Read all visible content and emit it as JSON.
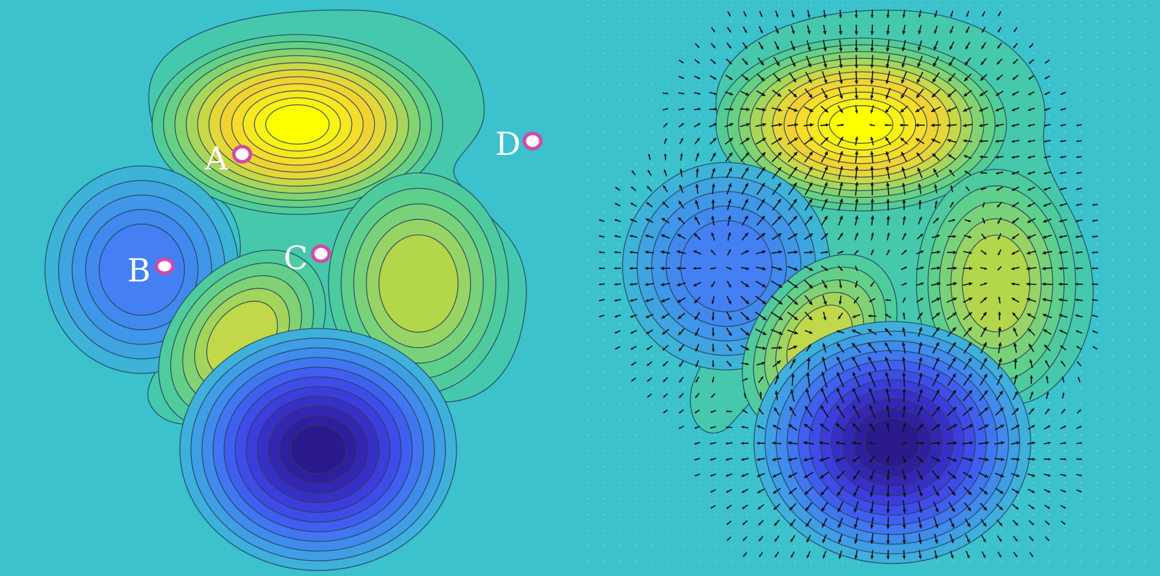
{
  "background_color": "#3bc2cc",
  "colormap": [
    "#2b1a8c",
    "#3b3fd6",
    "#4285f4",
    "#3fa8e0",
    "#3bc2cc",
    "#4ccc9c",
    "#7ad37a",
    "#b8d93b",
    "#f2d233",
    "#f7e91a",
    "#ffff00"
  ],
  "left_panel": {
    "title": "",
    "points": [
      {
        "label": "A",
        "icon": "point-marker-icon"
      },
      {
        "label": "B",
        "icon": "point-marker-icon"
      },
      {
        "label": "C",
        "icon": "point-marker-icon"
      },
      {
        "label": "D",
        "icon": "point-marker-icon"
      }
    ],
    "point_marker_color": "#d24aa6"
  },
  "right_panel": {
    "title": "",
    "overlay": "gradient-vector-field"
  }
}
